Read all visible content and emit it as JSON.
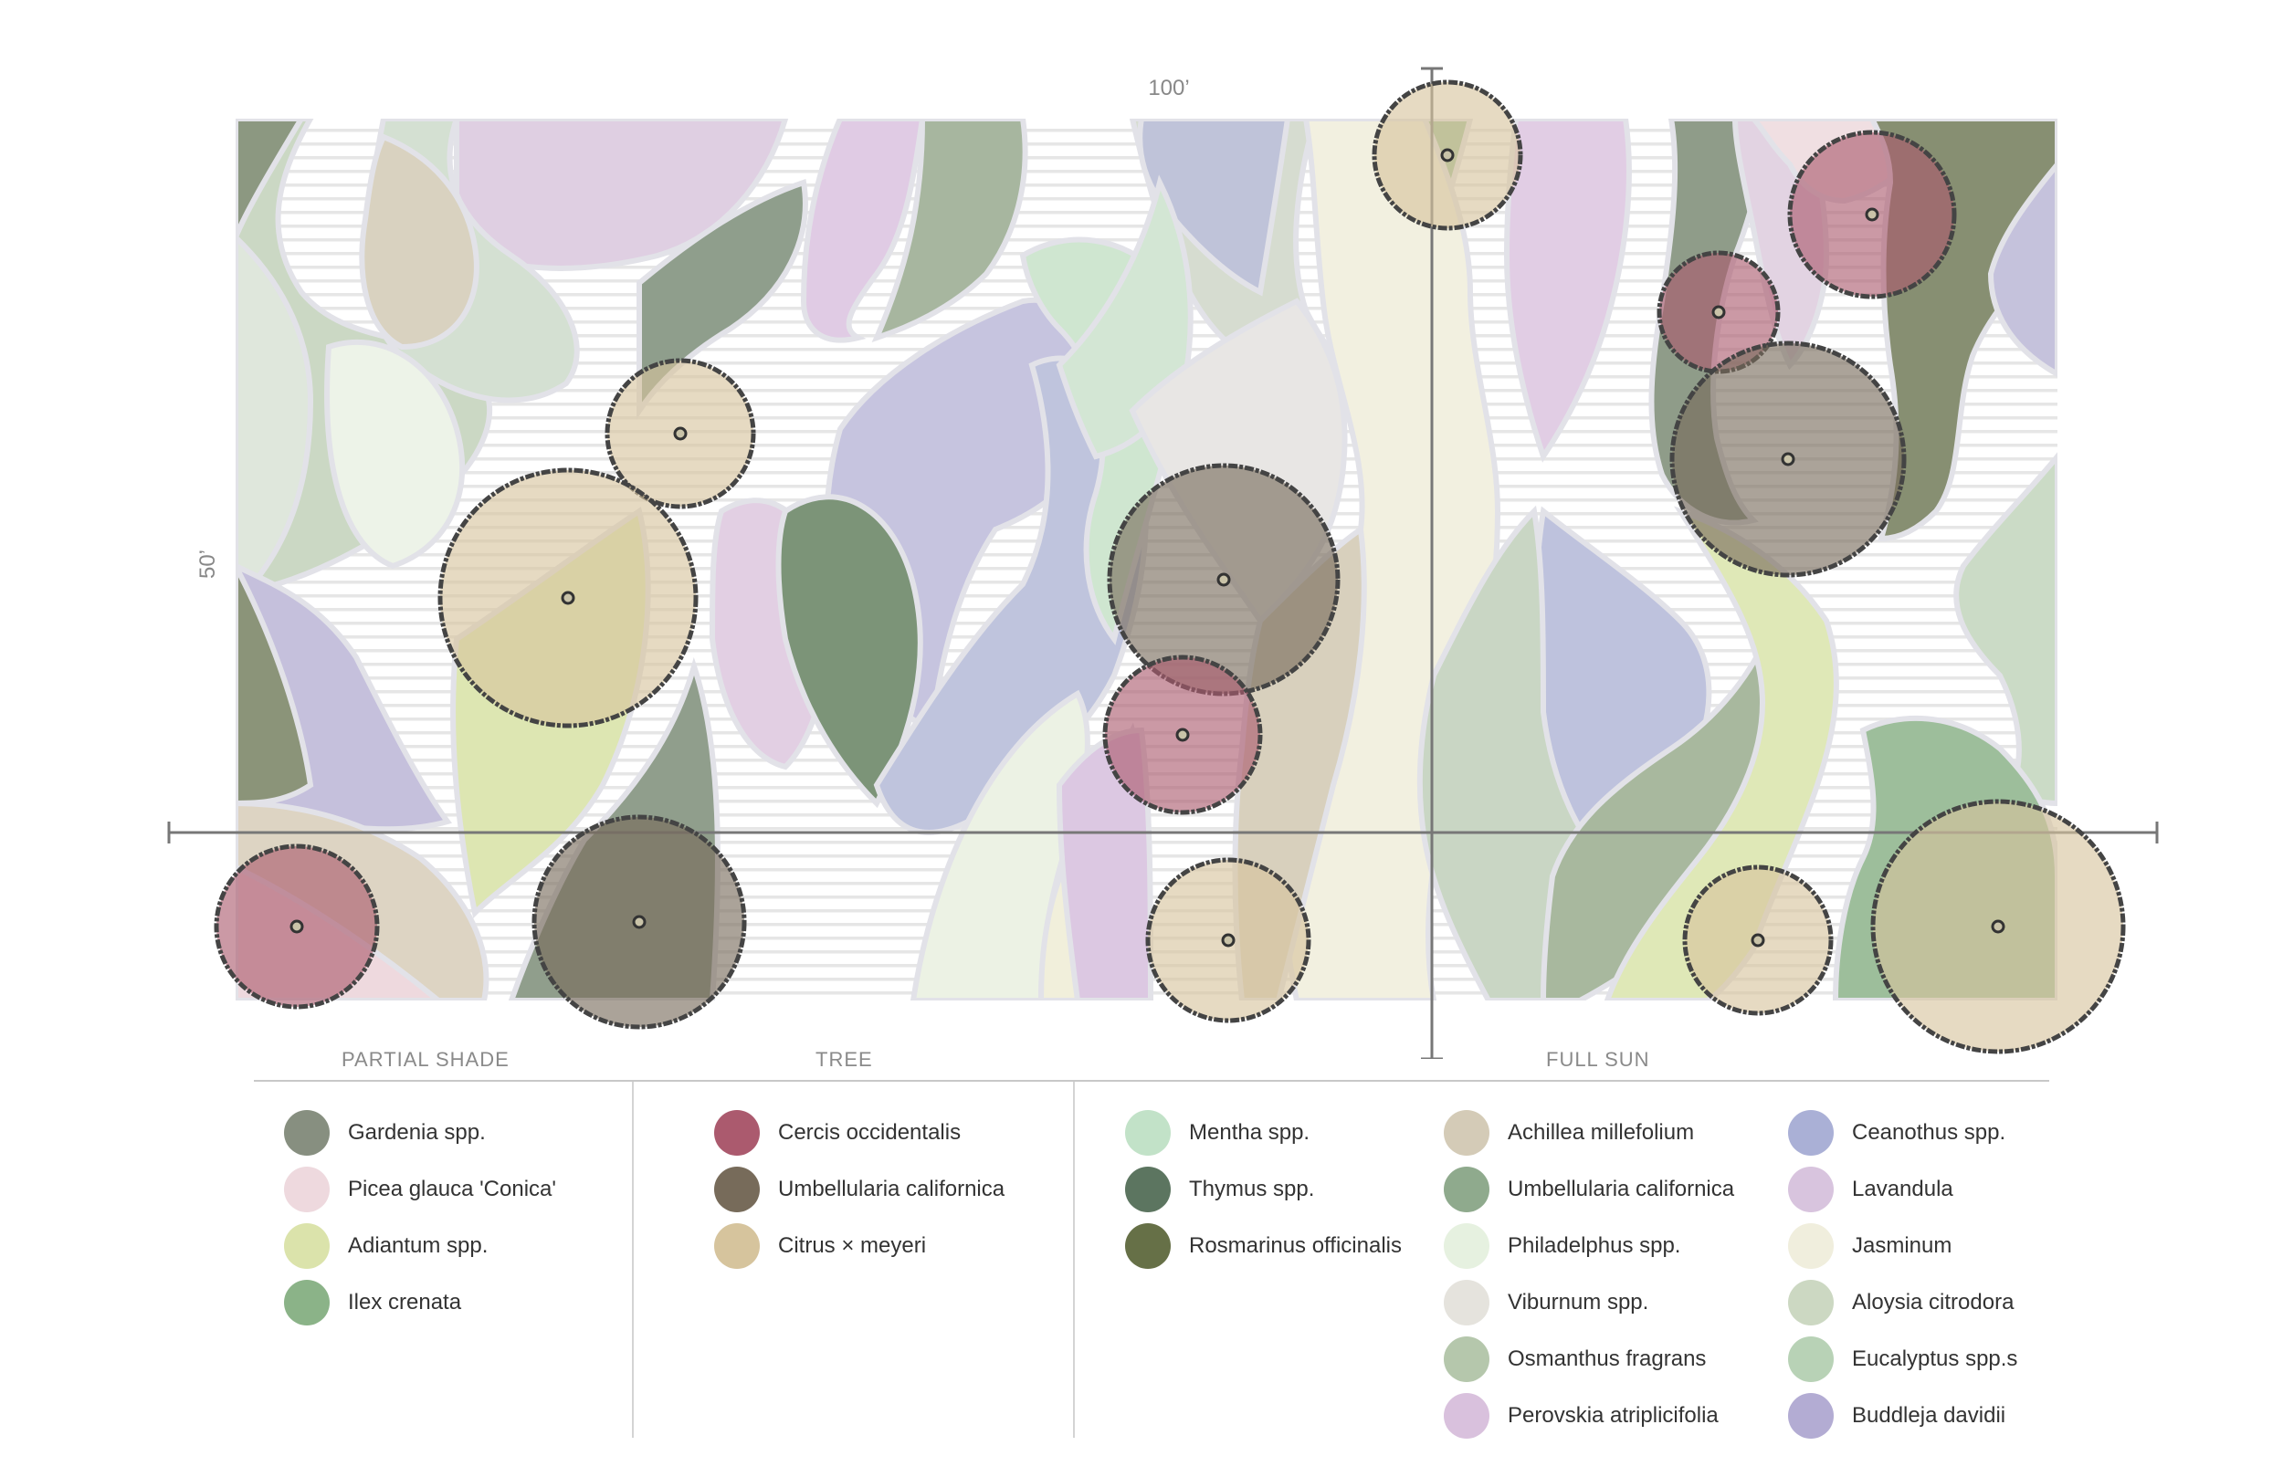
{
  "dimensions": {
    "width_label": "100’",
    "height_label": "50’"
  },
  "zones": [
    {
      "label": "PARTIAL SHADE"
    },
    {
      "label": "TREE"
    },
    {
      "label": "FULL SUN"
    }
  ],
  "legend": {
    "partial_shade": [
      {
        "name": "Gardenia spp.",
        "color": "#878f80"
      },
      {
        "name": "Picea glauca 'Conica'",
        "color": "#eed9de"
      },
      {
        "name": "Adiantum spp.",
        "color": "#dbe3ab"
      },
      {
        "name": "Ilex crenata",
        "color": "#8bb388"
      }
    ],
    "tree": [
      {
        "name": "Cercis occidentalis",
        "color": "#ab5a6e"
      },
      {
        "name": "Umbellularia californica",
        "color": "#776b5a"
      },
      {
        "name": "Citrus × meyeri",
        "color": "#d6c49d"
      }
    ],
    "full_sun_1": [
      {
        "name": "Mentha spp.",
        "color": "#c2e2c8"
      },
      {
        "name": "Thymus spp.",
        "color": "#5c7560"
      },
      {
        "name": "Rosmarinus officinalis",
        "color": "#667047"
      }
    ],
    "full_sun_2": [
      {
        "name": "Achillea millefolium",
        "color": "#d4cbb7"
      },
      {
        "name": "Umbellularia californica",
        "color": "#8faa8d"
      },
      {
        "name": "Philadelphus spp.",
        "color": "#e6f1e0"
      },
      {
        "name": "Viburnum spp.",
        "color": "#e5e3dd"
      },
      {
        "name": "Osmanthus fragrans",
        "color": "#b5c7ac"
      },
      {
        "name": "Perovskia atriplicifolia",
        "color": "#d9c1dd"
      }
    ],
    "full_sun_3": [
      {
        "name": "Ceanothus spp.",
        "color": "#aab0d6"
      },
      {
        "name": "Lavandula",
        "color": "#d8c4de"
      },
      {
        "name": "Jasminum",
        "color": "#f0eedd"
      },
      {
        "name": "Aloysia citrodora",
        "color": "#ccd8c2"
      },
      {
        "name": "Eucalyptus spp.s",
        "color": "#b8d2b6"
      },
      {
        "name": "Buddleja davidii",
        "color": "#b3acd3"
      }
    ]
  },
  "tree_canopies": [
    {
      "species": "Citrus × meyeri"
    },
    {
      "species": "Citrus × meyeri"
    },
    {
      "species": "Cercis occidentalis"
    },
    {
      "species": "Citrus × meyeri"
    },
    {
      "species": "Umbellularia californica"
    },
    {
      "species": "Cercis occidentalis"
    },
    {
      "species": "Citrus × meyeri"
    },
    {
      "species": "Citrus × meyeri"
    },
    {
      "species": "Cercis occidentalis"
    },
    {
      "species": "Cercis occidentalis"
    },
    {
      "species": "Umbellularia californica"
    },
    {
      "species": "Citrus × meyeri"
    },
    {
      "species": "Umbellularia californica"
    }
  ]
}
